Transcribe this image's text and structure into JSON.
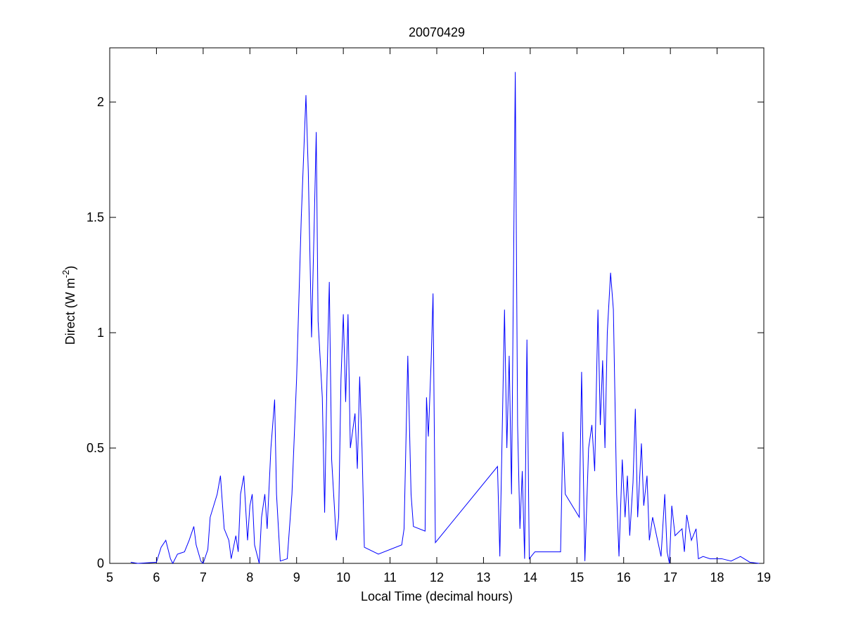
{
  "chart_data": {
    "type": "line",
    "title": "20070429",
    "xlabel": "Local Time (decimal hours)",
    "ylabel": [
      "Direct (W m",
      "-2",
      ")"
    ],
    "xlim": [
      5,
      19
    ],
    "xticks": [
      5,
      6,
      7,
      8,
      9,
      10,
      11,
      12,
      13,
      14,
      15,
      16,
      17,
      18,
      19
    ],
    "ylim": [
      0,
      2.235
    ],
    "yticks": [
      0,
      0.5,
      1,
      1.5,
      2
    ],
    "grid": false,
    "series": [
      {
        "color": "#0000ff",
        "x": [
          5.45,
          5.6,
          6.0,
          6.1,
          6.2,
          6.3,
          6.35,
          6.45,
          6.6,
          6.7,
          6.8,
          6.85,
          6.95,
          7.0,
          7.1,
          7.15,
          7.3,
          7.37,
          7.45,
          7.55,
          7.6,
          7.7,
          7.75,
          7.8,
          7.87,
          7.95,
          8.0,
          8.05,
          8.1,
          8.2,
          8.25,
          8.32,
          8.37,
          8.45,
          8.53,
          8.57,
          8.65,
          8.8,
          8.9,
          9.0,
          9.1,
          9.2,
          9.25,
          9.32,
          9.38,
          9.42,
          9.46,
          9.55,
          9.6,
          9.65,
          9.7,
          9.75,
          9.85,
          9.9,
          9.95,
          10.0,
          10.05,
          10.1,
          10.15,
          10.25,
          10.3,
          10.35,
          10.4,
          10.45,
          10.75,
          11.25,
          11.3,
          11.38,
          11.45,
          11.5,
          11.75,
          11.78,
          11.82,
          11.88,
          11.92,
          11.97,
          13.3,
          13.35,
          13.45,
          13.5,
          13.55,
          13.6,
          13.68,
          13.73,
          13.78,
          13.83,
          13.88,
          13.93,
          13.98,
          14.1,
          14.65,
          14.7,
          14.75,
          15.05,
          15.1,
          15.17,
          15.25,
          15.32,
          15.38,
          15.45,
          15.5,
          15.55,
          15.6,
          15.65,
          15.72,
          15.78,
          15.85,
          15.9,
          15.97,
          16.03,
          16.08,
          16.13,
          16.2,
          16.25,
          16.3,
          16.38,
          16.43,
          16.5,
          16.55,
          16.62,
          16.8,
          16.88,
          16.93,
          16.98,
          17.03,
          17.1,
          17.25,
          17.3,
          17.35,
          17.45,
          17.55,
          17.6,
          17.7,
          17.85,
          18.1,
          18.3,
          18.5,
          18.7,
          18.9
        ],
        "values": [
          0.005,
          0,
          0.005,
          0.07,
          0.1,
          0.02,
          0,
          0.04,
          0.05,
          0.1,
          0.16,
          0.08,
          0.01,
          0,
          0.06,
          0.2,
          0.3,
          0.38,
          0.15,
          0.1,
          0.02,
          0.12,
          0.05,
          0.3,
          0.38,
          0.1,
          0.25,
          0.3,
          0.08,
          0,
          0.2,
          0.3,
          0.15,
          0.5,
          0.71,
          0.3,
          0.01,
          0.02,
          0.3,
          0.8,
          1.5,
          2.03,
          1.7,
          0.98,
          1.5,
          1.87,
          1.05,
          0.72,
          0.22,
          0.8,
          1.22,
          0.45,
          0.1,
          0.2,
          0.8,
          1.08,
          0.7,
          1.08,
          0.5,
          0.65,
          0.41,
          0.81,
          0.5,
          0.07,
          0.04,
          0.08,
          0.15,
          0.9,
          0.3,
          0.16,
          0.14,
          0.72,
          0.55,
          0.88,
          1.17,
          0.09,
          0.42,
          0.03,
          1.1,
          0.5,
          0.9,
          0.3,
          2.13,
          0.6,
          0.15,
          0.4,
          0.02,
          0.97,
          0.02,
          0.05,
          0.05,
          0.57,
          0.3,
          0.2,
          0.83,
          0.01,
          0.5,
          0.6,
          0.4,
          1.1,
          0.6,
          0.88,
          0.5,
          1.0,
          1.26,
          1.1,
          0.3,
          0.03,
          0.45,
          0.2,
          0.38,
          0.12,
          0.35,
          0.67,
          0.2,
          0.52,
          0.25,
          0.38,
          0.1,
          0.2,
          0.03,
          0.3,
          0.05,
          0,
          0.25,
          0.12,
          0.15,
          0.05,
          0.21,
          0.1,
          0.15,
          0.02,
          0.03,
          0.02,
          0.02,
          0.01,
          0.03,
          0.005,
          0
        ]
      }
    ]
  }
}
